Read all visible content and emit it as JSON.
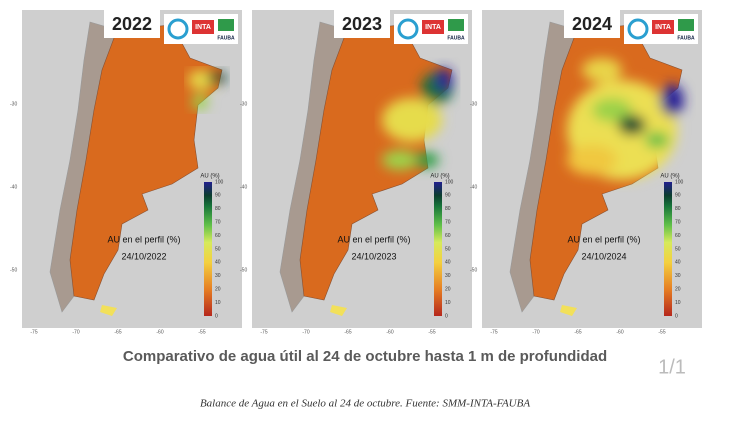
{
  "panels": [
    {
      "year": "2022",
      "legend_title": "AU (%)",
      "map_label": "AU en el perfil (%)",
      "date": "24/10/2022"
    },
    {
      "year": "2023",
      "legend_title": "AU (%)",
      "map_label": "AU en el perfil (%)",
      "date": "24/10/2023"
    },
    {
      "year": "2024",
      "legend_title": "AU (%)",
      "map_label": "AU en el perfil (%)",
      "date": "24/10/2024"
    }
  ],
  "colorbar_ticks": [
    "100",
    "90",
    "80",
    "70",
    "60",
    "50",
    "40",
    "30",
    "20",
    "10",
    "0"
  ],
  "lat_ticks": [
    "-30",
    "-40",
    "-50"
  ],
  "lon_ticks": [
    "-75",
    "-70",
    "-65",
    "-60",
    "-55"
  ],
  "logos": {
    "inta": "INTA",
    "fauba": "FAUBA"
  },
  "headline": "Comparativo de agua útil al 24 de octubre hasta 1 m de profundidad",
  "page_indicator": "1/1",
  "caption": "Balance de Agua en el Suelo al 24 de octubre. Fuente: SMM-INTA-FAUBA"
}
